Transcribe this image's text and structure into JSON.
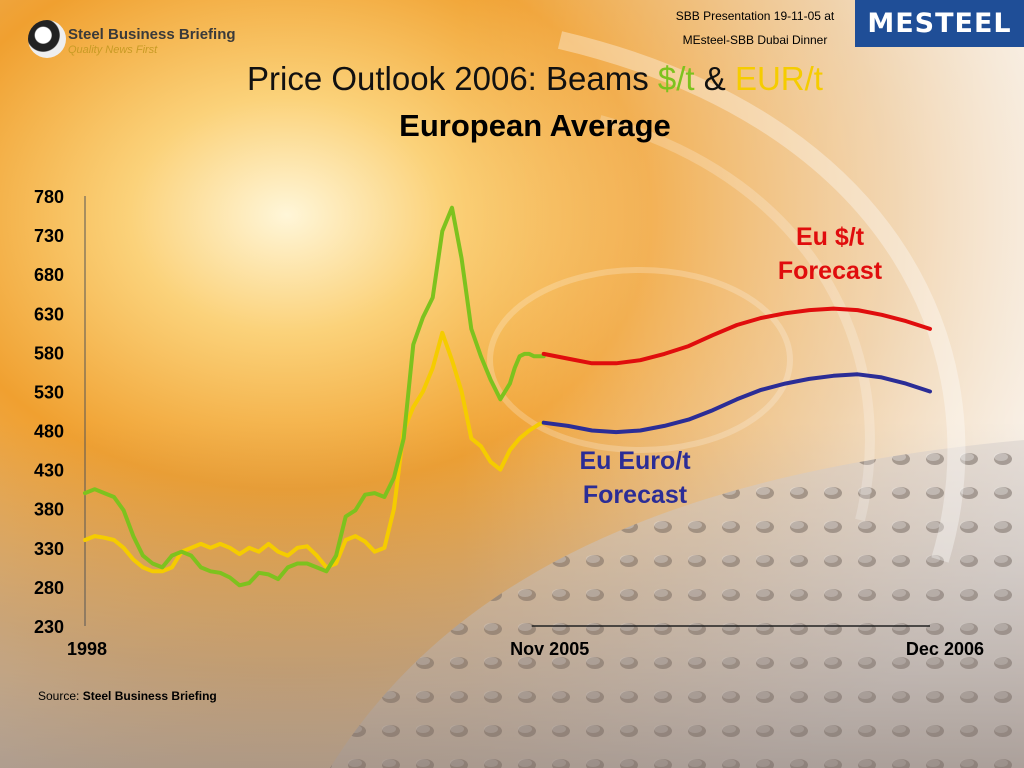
{
  "header": {
    "brand_name": "Steel Business Briefing",
    "brand_tagline": "Quality News First",
    "presentation_line1": "SBB Presentation 19-11-05 at",
    "presentation_line2": "MEsteel-SBB Dubai Dinner",
    "partner_logo": "MESTEEL"
  },
  "title": {
    "prefix": "Price Outlook 2006: Beams ",
    "usd": "$/t",
    "amp": " & ",
    "eur": "EUR/t",
    "subtitle": "European Average"
  },
  "labels": {
    "usd_forecast": [
      "Eu $/t",
      "Forecast"
    ],
    "eur_forecast": [
      "Eu Euro/t",
      "Forecast"
    ]
  },
  "source": {
    "prefix": "Source: ",
    "name": "Steel Business Briefing"
  },
  "colors": {
    "usd_history": "#7dc21e",
    "eur_history": "#f5cc00",
    "usd_forecast": "#e00d0d",
    "eur_forecast": "#2b2d96"
  },
  "chart_data": {
    "type": "line",
    "x_unit": "month",
    "x_ticks": [
      {
        "label": "1998",
        "x": 0
      },
      {
        "label": "Nov 2005",
        "x": 95
      },
      {
        "label": "Dec 2006",
        "x": 175
      }
    ],
    "xlim": [
      0,
      175
    ],
    "yticks": [
      230,
      280,
      330,
      380,
      430,
      480,
      530,
      580,
      630,
      680,
      730,
      780
    ],
    "ylim": [
      230,
      780
    ],
    "series": [
      {
        "name": "$/t",
        "kind": "history",
        "color": "#7dc21e",
        "x": [
          0,
          2,
          4,
          6,
          8,
          10,
          12,
          14,
          16,
          18,
          20,
          22,
          24,
          26,
          28,
          30,
          32,
          34,
          36,
          38,
          40,
          42,
          44,
          46,
          48,
          50,
          52,
          54,
          56,
          58,
          60,
          62,
          64,
          66,
          68,
          70,
          72,
          74,
          76,
          78,
          80,
          82,
          84,
          86,
          88,
          89,
          90,
          91,
          92,
          93,
          94,
          95
        ],
        "values": [
          400,
          405,
          400,
          395,
          378,
          345,
          320,
          310,
          305,
          320,
          325,
          320,
          305,
          300,
          298,
          292,
          282,
          285,
          298,
          296,
          290,
          305,
          310,
          310,
          305,
          300,
          320,
          370,
          378,
          398,
          400,
          395,
          420,
          470,
          590,
          625,
          650,
          735,
          765,
          700,
          610,
          575,
          545,
          520,
          540,
          560,
          575,
          578,
          578,
          575,
          575,
          575
        ]
      },
      {
        "name": "EUR/t",
        "kind": "history",
        "color": "#f5cc00",
        "x": [
          0,
          2,
          4,
          6,
          8,
          10,
          12,
          14,
          16,
          18,
          20,
          22,
          24,
          26,
          28,
          30,
          32,
          34,
          36,
          38,
          40,
          42,
          44,
          46,
          48,
          50,
          52,
          54,
          56,
          58,
          60,
          62,
          64,
          66,
          68,
          70,
          72,
          74,
          76,
          78,
          80,
          82,
          84,
          86,
          88,
          90,
          92,
          94,
          95
        ],
        "values": [
          340,
          345,
          343,
          340,
          330,
          315,
          305,
          300,
          300,
          305,
          325,
          330,
          335,
          330,
          335,
          330,
          322,
          330,
          325,
          335,
          325,
          320,
          330,
          332,
          320,
          305,
          310,
          340,
          345,
          338,
          325,
          330,
          380,
          480,
          510,
          530,
          560,
          605,
          570,
          530,
          470,
          460,
          440,
          430,
          455,
          470,
          480,
          488,
          490
        ]
      },
      {
        "name": "Eu $/t",
        "kind": "forecast",
        "color": "#e00d0d",
        "x": [
          95,
          100,
          105,
          110,
          115,
          120,
          125,
          130,
          135,
          140,
          145,
          150,
          155,
          160,
          165,
          170,
          175
        ],
        "values": [
          578,
          572,
          566,
          566,
          570,
          578,
          588,
          602,
          615,
          624,
          630,
          634,
          636,
          634,
          628,
          620,
          610
        ]
      },
      {
        "name": "Eu Euro/t",
        "kind": "forecast",
        "color": "#2b2d96",
        "x": [
          95,
          100,
          105,
          110,
          115,
          120,
          125,
          130,
          135,
          140,
          145,
          150,
          155,
          160,
          165,
          170,
          175
        ],
        "values": [
          490,
          486,
          480,
          478,
          480,
          486,
          494,
          506,
          520,
          532,
          540,
          546,
          550,
          552,
          548,
          540,
          530
        ]
      }
    ]
  }
}
